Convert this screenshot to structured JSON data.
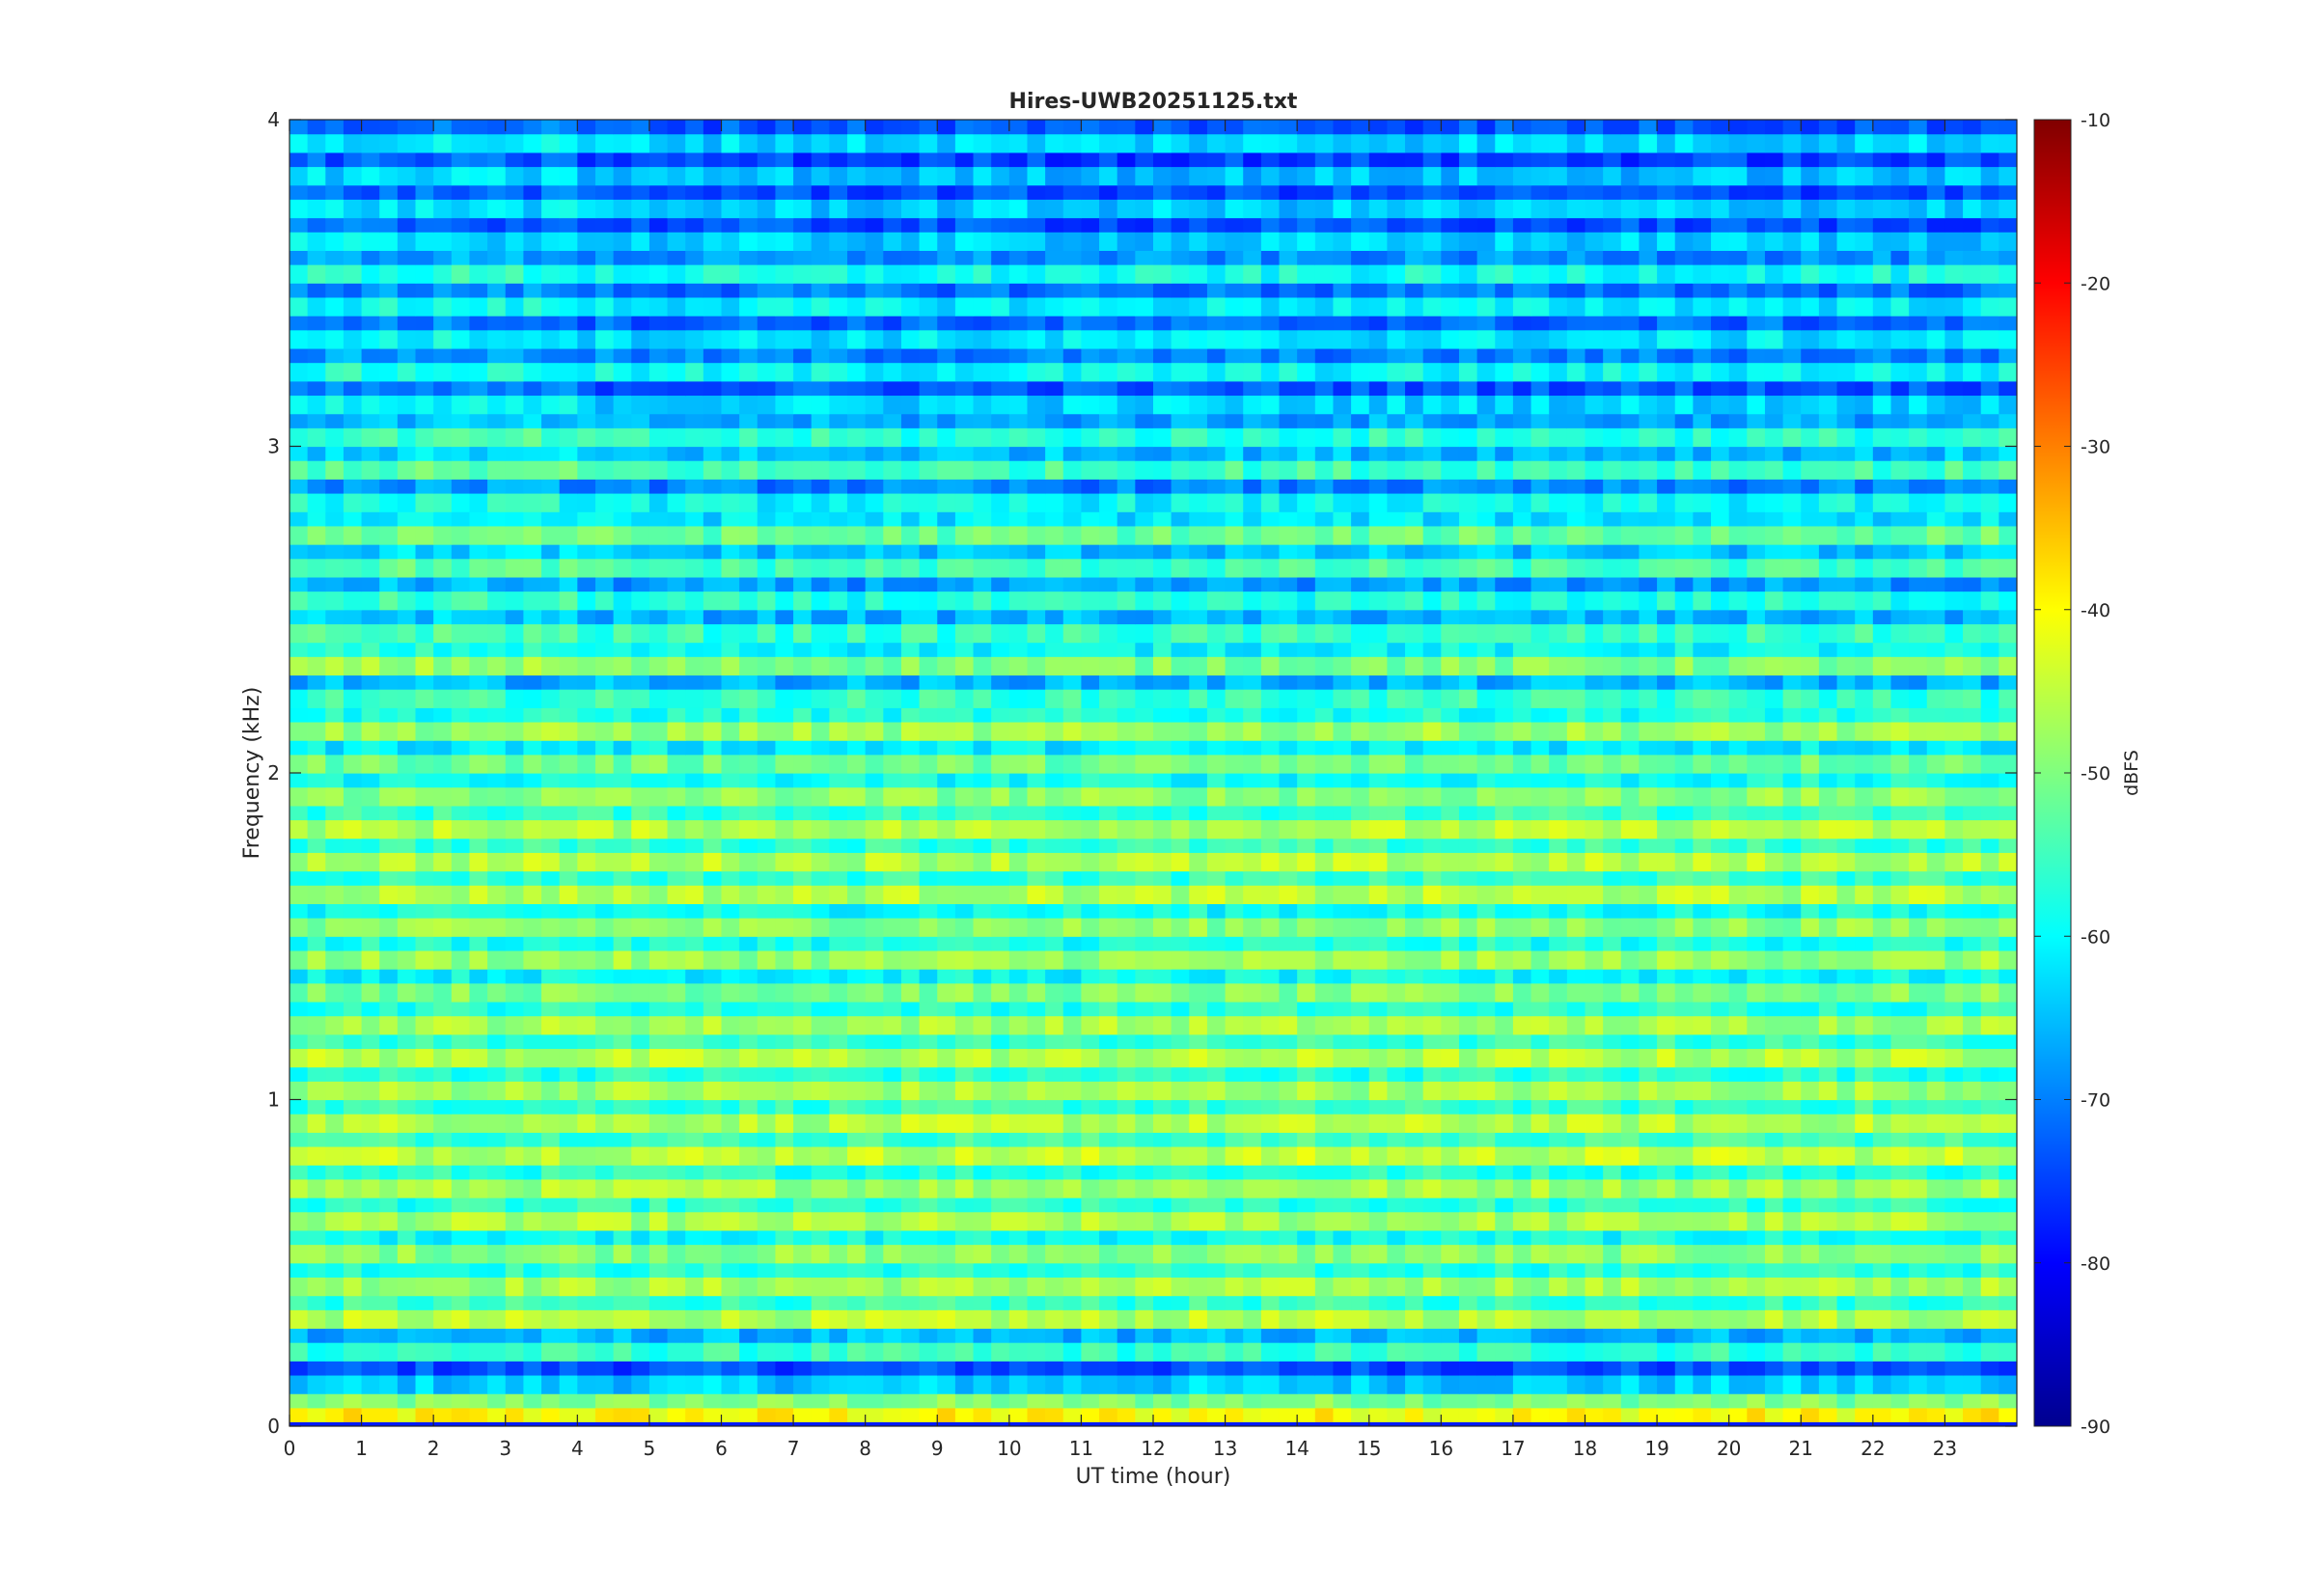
{
  "chart_data": {
    "type": "heatmap",
    "title": "Hires-UWB20251125.txt",
    "xlabel": "UT time (hour)",
    "ylabel": "Frequency (kHz)",
    "xlim": [
      0,
      24
    ],
    "ylim": [
      0,
      4
    ],
    "x_ticks": [
      0,
      1,
      2,
      3,
      4,
      5,
      6,
      7,
      8,
      9,
      10,
      11,
      12,
      13,
      14,
      15,
      16,
      17,
      18,
      19,
      20,
      21,
      22,
      23
    ],
    "y_ticks": [
      0,
      1,
      2,
      3,
      4
    ],
    "colorbar": {
      "label": "dBFS",
      "clim": [
        -90,
        -10
      ],
      "ticks": [
        -90,
        -80,
        -70,
        -60,
        -50,
        -40,
        -30,
        -20,
        -10
      ],
      "colormap": "jet"
    },
    "band_spacing_khz": 0.1,
    "bands": [
      {
        "f": 0.05,
        "level": -40
      },
      {
        "f": 0.15,
        "level": -64
      },
      {
        "f": 0.25,
        "level": -56
      },
      {
        "f": 0.35,
        "level": -46
      },
      {
        "f": 0.45,
        "level": -47
      },
      {
        "f": 0.55,
        "level": -49
      },
      {
        "f": 0.65,
        "level": -47
      },
      {
        "f": 0.75,
        "level": -47
      },
      {
        "f": 0.85,
        "level": -45
      },
      {
        "f": 0.95,
        "level": -46
      },
      {
        "f": 1.05,
        "level": -47
      },
      {
        "f": 1.15,
        "level": -46
      },
      {
        "f": 1.25,
        "level": -47
      },
      {
        "f": 1.35,
        "level": -50
      },
      {
        "f": 1.45,
        "level": -48
      },
      {
        "f": 1.55,
        "level": -49
      },
      {
        "f": 1.65,
        "level": -46
      },
      {
        "f": 1.75,
        "level": -46
      },
      {
        "f": 1.85,
        "level": -46
      },
      {
        "f": 1.95,
        "level": -49
      },
      {
        "f": 2.05,
        "level": -51
      },
      {
        "f": 2.15,
        "level": -48
      },
      {
        "f": 2.25,
        "level": -56
      },
      {
        "f": 2.35,
        "level": -50
      },
      {
        "f": 2.45,
        "level": -56
      },
      {
        "f": 2.55,
        "level": -58
      },
      {
        "f": 2.65,
        "level": -55
      },
      {
        "f": 2.75,
        "level": -52
      },
      {
        "f": 2.85,
        "level": -60
      },
      {
        "f": 2.95,
        "level": -55
      },
      {
        "f": 3.05,
        "level": -57
      },
      {
        "f": 3.15,
        "level": -63
      },
      {
        "f": 3.25,
        "level": -60
      },
      {
        "f": 3.35,
        "level": -62
      },
      {
        "f": 3.45,
        "level": -61
      },
      {
        "f": 3.55,
        "level": -59
      },
      {
        "f": 3.65,
        "level": -64
      },
      {
        "f": 3.75,
        "level": -64
      },
      {
        "f": 3.85,
        "level": -65
      },
      {
        "f": 3.95,
        "level": -63
      }
    ]
  }
}
